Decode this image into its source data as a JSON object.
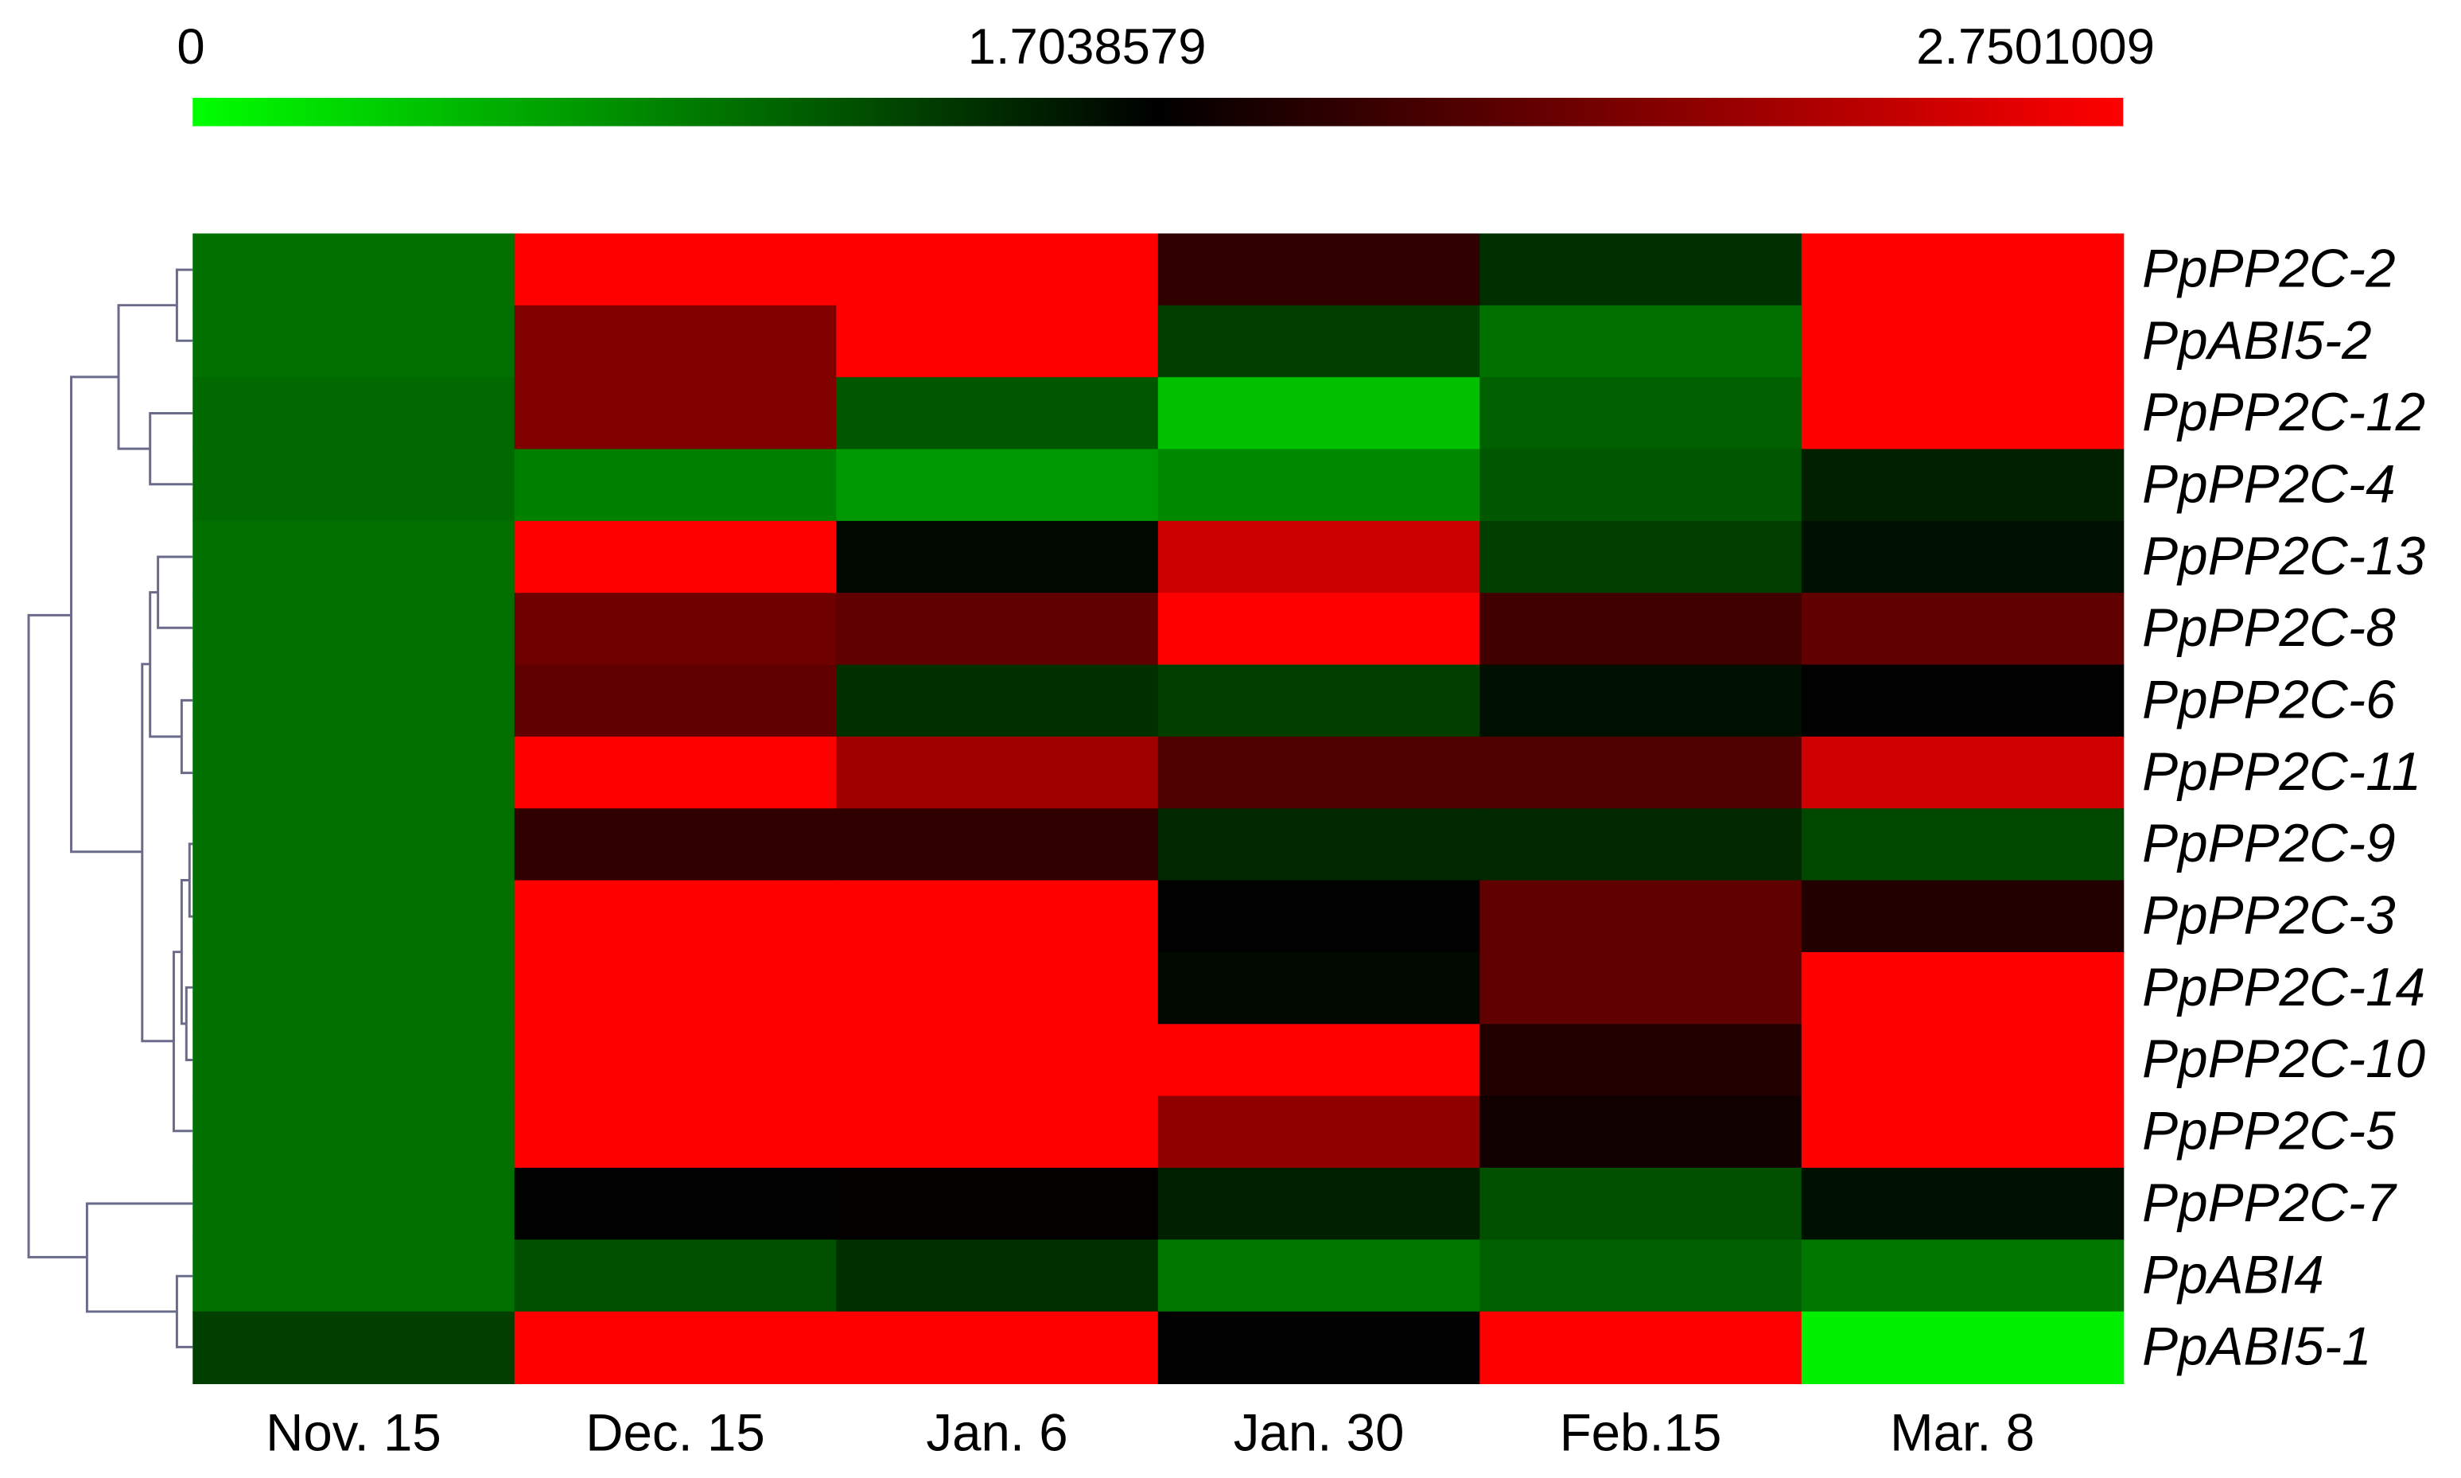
{
  "chart_data": {
    "type": "heatmap",
    "categories": [
      "Nov. 15",
      "Dec. 15",
      "Jan. 6",
      "Jan. 30",
      "Feb.15",
      "Mar. 8"
    ],
    "rows": [
      "PpPP2C-2",
      "PpABI5-2",
      "PpPP2C-12",
      "PpPP2C-4",
      "PpPP2C-13",
      "PpPP2C-8",
      "PpPP2C-6",
      "PpPP2C-11",
      "PpPP2C-9",
      "PpPP2C-3",
      "PpPP2C-14",
      "PpPP2C-10",
      "PpPP2C-5",
      "PpPP2C-7",
      "PpABI4",
      "PpABI5-1"
    ],
    "values": [
      [
        0.95,
        2.75,
        2.75,
        1.9,
        1.38,
        2.75
      ],
      [
        0.95,
        2.23,
        2.75,
        1.28,
        0.95,
        2.75
      ],
      [
        1.0,
        2.23,
        1.12,
        0.42,
        1.06,
        2.75
      ],
      [
        1.0,
        0.85,
        0.69,
        0.79,
        1.12,
        1.49
      ],
      [
        0.95,
        2.75,
        1.65,
        2.54,
        1.28,
        1.6
      ],
      [
        0.95,
        2.16,
        2.1,
        2.75,
        1.97,
        2.1
      ],
      [
        0.95,
        2.1,
        1.38,
        1.28,
        1.6,
        1.7
      ],
      [
        0.95,
        2.75,
        2.36,
        2.03,
        2.03,
        2.56
      ],
      [
        0.95,
        1.9,
        1.9,
        1.44,
        1.44,
        1.22
      ],
      [
        0.95,
        2.75,
        2.75,
        1.7,
        2.1,
        1.84
      ],
      [
        0.95,
        2.75,
        2.75,
        1.65,
        2.1,
        2.75
      ],
      [
        0.95,
        2.75,
        2.75,
        2.75,
        1.84,
        2.75
      ],
      [
        0.95,
        2.75,
        2.75,
        2.3,
        1.77,
        2.75
      ],
      [
        0.95,
        1.7,
        1.72,
        1.49,
        1.17,
        1.6
      ],
      [
        0.95,
        1.17,
        1.38,
        0.9,
        1.06,
        0.9
      ],
      [
        1.28,
        2.75,
        2.75,
        1.7,
        2.75,
        0.1
      ]
    ],
    "colorbar_ticks": [
      0,
      1.7038579,
      2.7501009
    ],
    "colors": [
      "#00ff00",
      "#000000",
      "#ff0000"
    ],
    "dendrogram": true
  }
}
